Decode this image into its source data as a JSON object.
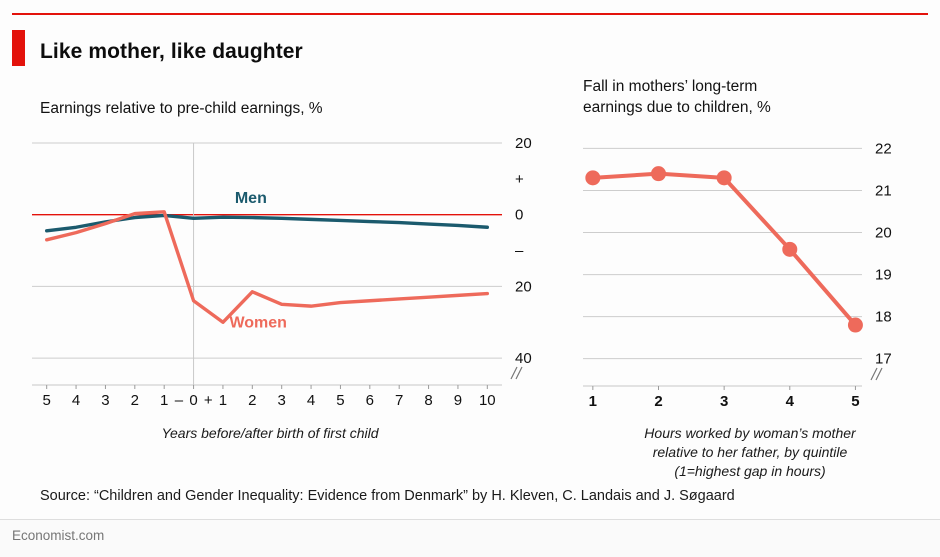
{
  "page": {
    "title": "Like mother, like daughter",
    "source": "Source: “Children and Gender Inequality: Evidence from Denmark” by H. Kleven, C. Landais and J. Søgaard",
    "footer": "Economist.com",
    "accent_color": "#e3120b"
  },
  "chart_data": [
    {
      "type": "line",
      "title": "Earnings relative to pre-child earnings, %",
      "xlabel": "Years before/after birth of first child",
      "x": [
        -5,
        -4,
        -3,
        -2,
        -1,
        0,
        1,
        2,
        3,
        4,
        5,
        6,
        7,
        8,
        9,
        10
      ],
      "xtick_labels": [
        "5",
        "4",
        "3",
        "2",
        "1",
        "0",
        "1",
        "2",
        "3",
        "4",
        "5",
        "6",
        "7",
        "8",
        "9",
        "10"
      ],
      "x_extra_labels": [
        {
          "x": -0.5,
          "label": "–"
        },
        {
          "x": 0.5,
          "label": "+"
        }
      ],
      "ylim": [
        -47.5,
        20
      ],
      "yticks": [
        {
          "v": 20,
          "label": "20",
          "grid": true
        },
        {
          "v": 10,
          "label": "+",
          "grid": false
        },
        {
          "v": 0,
          "label": "0",
          "grid": true,
          "color": "#e3120b"
        },
        {
          "v": -10,
          "label": "–",
          "grid": false
        },
        {
          "v": -20,
          "label": "20",
          "grid": true
        },
        {
          "v": -40,
          "label": "40",
          "grid": true
        }
      ],
      "event_line_x": 0,
      "axis_break": true,
      "series": [
        {
          "name": "Men",
          "color": "#1b5a6d",
          "marker": false,
          "values": [
            -4.5,
            -3.5,
            -2,
            -0.8,
            -0.2,
            -1,
            -0.7,
            -0.8,
            -1,
            -1.3,
            -1.6,
            -1.9,
            -2.2,
            -2.6,
            -3,
            -3.5
          ]
        },
        {
          "name": "Women",
          "color": "#ee6a5b",
          "marker": false,
          "values": [
            -7,
            -5,
            -2.5,
            0.3,
            0.8,
            -24,
            -30,
            -21.5,
            -25,
            -25.5,
            -24.5,
            -24,
            -23.5,
            -23,
            -22.5,
            -22
          ]
        }
      ],
      "annotations": [
        {
          "text": "Men",
          "x": 1.95,
          "y": 3.3,
          "color": "#1b5a6d"
        },
        {
          "text": "Women",
          "x": 2.2,
          "y": -31.5,
          "color": "#ee6a5b"
        }
      ]
    },
    {
      "type": "line",
      "title": "Fall in mothers’ long-term\nearnings due to children, %",
      "xlabel": "Hours worked by woman’s mother\nrelative to her father, by quintile\n(1=highest gap in hours)",
      "x": [
        1,
        2,
        3,
        4,
        5
      ],
      "xtick_labels": [
        "1",
        "2",
        "3",
        "4",
        "5"
      ],
      "ylim": [
        16.35,
        22.2
      ],
      "yticks": [
        {
          "v": 22,
          "label": "22",
          "grid": true
        },
        {
          "v": 21,
          "label": "21",
          "grid": true
        },
        {
          "v": 20,
          "label": "20",
          "grid": true
        },
        {
          "v": 19,
          "label": "19",
          "grid": true
        },
        {
          "v": 18,
          "label": "18",
          "grid": true
        },
        {
          "v": 17,
          "label": "17",
          "grid": true
        }
      ],
      "axis_break": true,
      "series": [
        {
          "name": "Mothers",
          "color": "#ee6a5b",
          "marker": true,
          "values": [
            21.3,
            21.4,
            21.3,
            19.6,
            17.8
          ]
        }
      ],
      "annotations": []
    }
  ]
}
